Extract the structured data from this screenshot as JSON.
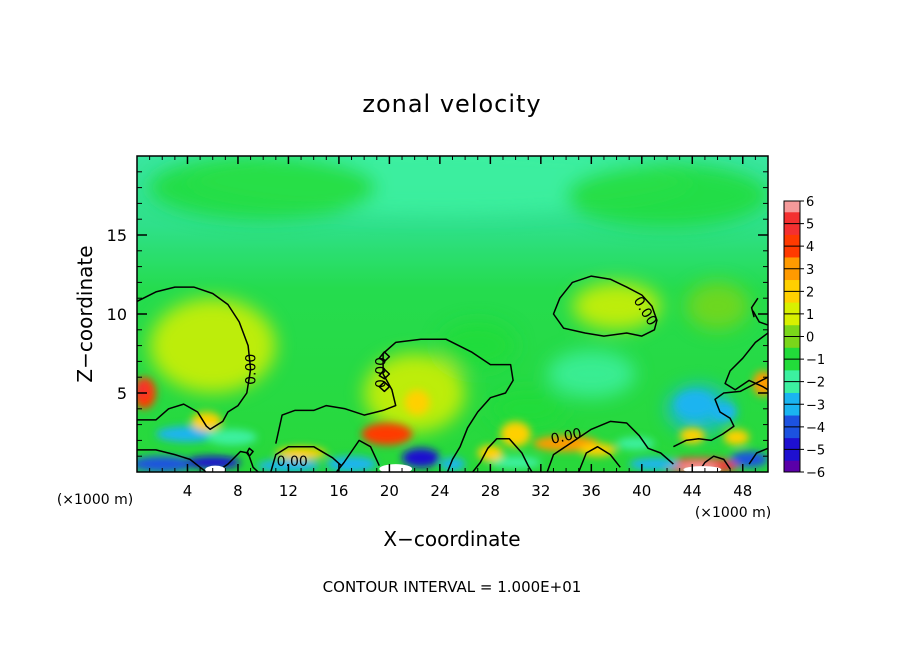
{
  "chart_data": {
    "type": "heatmap",
    "title": "zonal velocity",
    "xlabel": "X−coordinate",
    "ylabel": "Z−coordinate",
    "x_unit_left": "(×1000 m)",
    "x_unit_right": "(×1000 m)",
    "footer": "CONTOUR INTERVAL = 1.000E+01",
    "xlim": [
      0,
      50
    ],
    "ylim": [
      0,
      20
    ],
    "x_ticks": [
      4,
      8,
      12,
      16,
      20,
      24,
      28,
      32,
      36,
      40,
      44,
      48
    ],
    "y_ticks": [
      5,
      10,
      15
    ],
    "colorbar": {
      "levels": [
        6,
        5,
        4,
        3,
        2,
        1,
        0,
        -1,
        -2,
        -3,
        -4,
        -5,
        -6
      ],
      "labels": [
        "6",
        "5",
        "4",
        "3",
        "2",
        "1",
        "0",
        "−1",
        "−2",
        "−3",
        "−4",
        "−5",
        "−6"
      ],
      "colors": [
        "#f59a9a",
        "#f43030",
        "#ff3a00",
        "#ff9a00",
        "#ffd000",
        "#d8f000",
        "#7ad61a",
        "#22dc3a",
        "#3cf0a0",
        "#1ab4f0",
        "#1c52e0",
        "#1e10d0",
        "#5a00a8"
      ]
    },
    "contour_labels": [
      {
        "text": "0.00",
        "x": 9,
        "z": 6.5,
        "rotate": -90
      },
      {
        "text": "0.00",
        "x": 19.3,
        "z": 6.3,
        "rotate": -90
      },
      {
        "text": "0.00",
        "x": 12.3,
        "z": 0.7,
        "rotate": 0
      },
      {
        "text": "0.00",
        "x": 34,
        "z": 2.3,
        "rotate": -12
      },
      {
        "text": "0.00",
        "x": 40.3,
        "z": 10.2,
        "rotate": 58
      }
    ],
    "features": [
      {
        "x": 0.5,
        "z": 5.0,
        "value": 3.5
      },
      {
        "x": 20.0,
        "z": 2.5,
        "value": 3.5
      },
      {
        "x": 22.0,
        "z": 4.5,
        "value": 2.0
      },
      {
        "x": 34.0,
        "z": 1.5,
        "value": 3.0
      },
      {
        "x": 44.5,
        "z": 0.3,
        "value": 5.0
      },
      {
        "x": 49.5,
        "z": 5.5,
        "value": 3.0
      },
      {
        "x": 44.0,
        "z": 4.0,
        "value": -3.0
      },
      {
        "x": 4.0,
        "z": 0.6,
        "value": -4.5
      },
      {
        "x": 22.0,
        "z": 0.8,
        "value": -5.0
      },
      {
        "x": 36.0,
        "z": 6.0,
        "value": -2.0
      },
      {
        "x": 24.0,
        "z": 17.0,
        "value": -1.5
      }
    ]
  }
}
